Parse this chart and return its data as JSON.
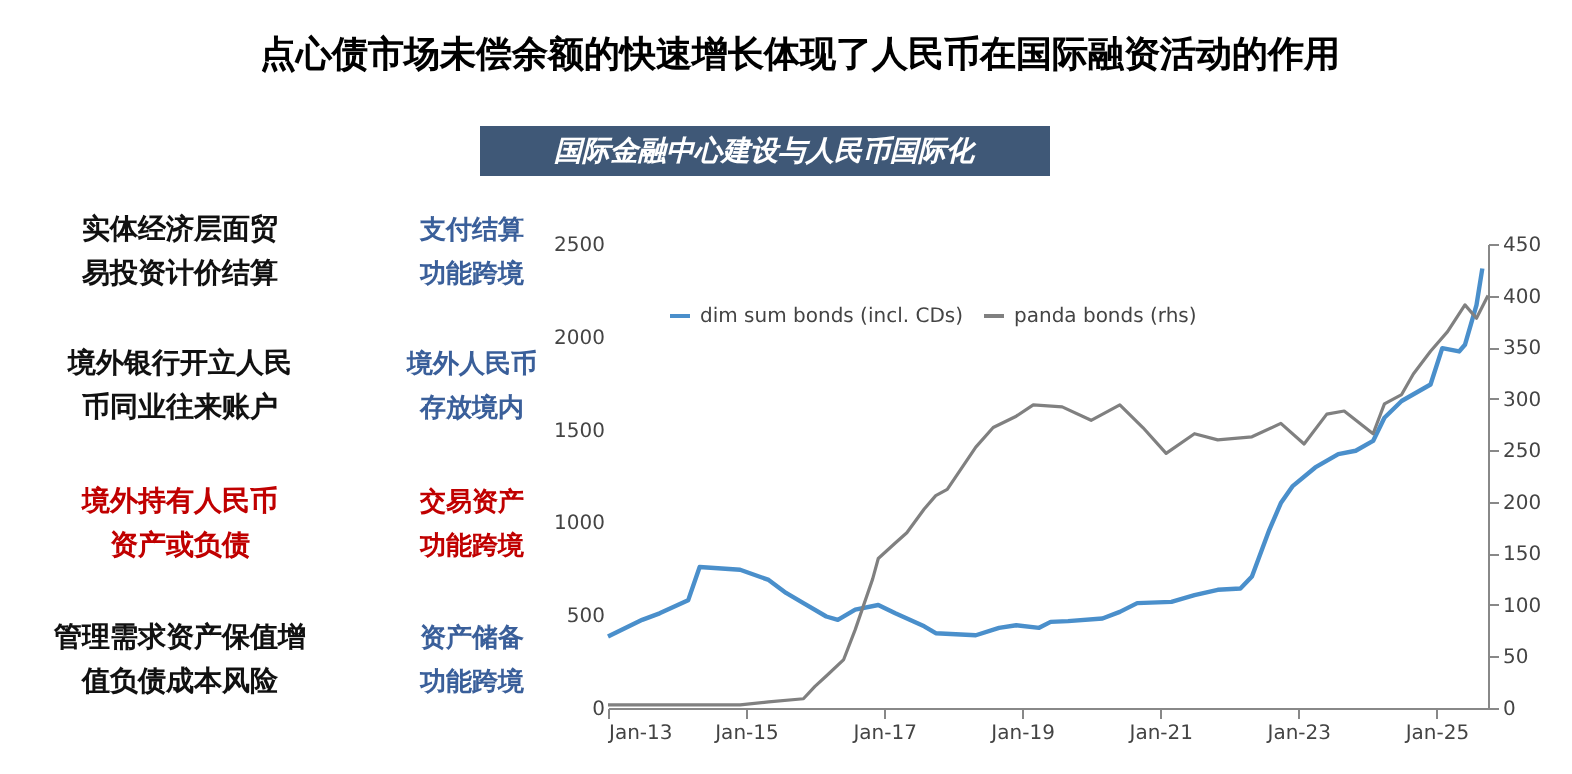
{
  "chart_data": {
    "type": "line",
    "title": "点心债市场未偿余额的快速增长体现了人民币在国际融资活动的作用",
    "subtitle": "国际金融中心建设与人民币国际化",
    "annotations": [
      "实体经济层面贸易投资计价结算",
      "支付结算功能跨境",
      "境外银行开立人民币同业往来账户",
      "境外人民币存放境内",
      "境外持有人民币资产或负债",
      "交易资产功能跨境",
      "管理需求资产保值增值负债成本风险",
      "资产储备功能跨境"
    ],
    "xlim": [
      "2013-01",
      "2025-10"
    ],
    "xticks": [
      {
        "value": "2013-01",
        "label": "Jan-13"
      },
      {
        "value": "2015-01",
        "label": "Jan-15"
      },
      {
        "value": "2017-01",
        "label": "Jan-17"
      },
      {
        "value": "2019-01",
        "label": "Jan-19"
      },
      {
        "value": "2021-01",
        "label": "Jan-21"
      },
      {
        "value": "2023-01",
        "label": "Jan-23"
      },
      {
        "value": "2025-01",
        "label": "Jan-25"
      }
    ],
    "ylim": [
      0,
      2500
    ],
    "yticks": [
      0,
      500,
      1000,
      1500,
      2000,
      2500
    ],
    "y2lim": [
      0,
      450
    ],
    "y2ticks": [
      0,
      50,
      100,
      150,
      200,
      250,
      300,
      350,
      400,
      450
    ],
    "legend": "top left",
    "grid": false,
    "line_style": "solid",
    "marker": "none",
    "series": [
      {
        "name": "dim sum bonds (incl. CDs)",
        "color": "#4a8fcb",
        "x": [
          "2013-01",
          "2013-07",
          "2013-10",
          "2014-03",
          "2014-05",
          "2014-12",
          "2015-05",
          "2015-08",
          "2015-11",
          "2016-03",
          "2016-05",
          "2016-08",
          "2016-12",
          "2017-03",
          "2017-08",
          "2017-10",
          "2018-05",
          "2018-09",
          "2018-12",
          "2019-04",
          "2019-06",
          "2019-09",
          "2020-03",
          "2020-06",
          "2020-09",
          "2021-03",
          "2021-07",
          "2021-11",
          "2022-03",
          "2022-05",
          "2022-08",
          "2022-10",
          "2022-12",
          "2023-04",
          "2023-08",
          "2023-11",
          "2024-02",
          "2024-04",
          "2024-07",
          "2024-12",
          "2025-02",
          "2025-05",
          "2025-06",
          "2025-08",
          "2025-09"
        ],
        "values": [
          385,
          475,
          510,
          580,
          760,
          745,
          690,
          620,
          565,
          493,
          475,
          530,
          555,
          510,
          440,
          403,
          392,
          432,
          446,
          432,
          464,
          468,
          482,
          518,
          565,
          572,
          608,
          637,
          644,
          709,
          960,
          1104,
          1194,
          1296,
          1368,
          1386,
          1439,
          1564,
          1654,
          1743,
          1939,
          1921,
          1957,
          2171,
          2368
        ]
      },
      {
        "name": "panda bonds (rhs)",
        "color": "#808080",
        "axis": "y2",
        "x": [
          "2013-01",
          "2014-12",
          "2015-05",
          "2015-11",
          "2016-01",
          "2016-03",
          "2016-06",
          "2016-08",
          "2016-11",
          "2016-12",
          "2017-03",
          "2017-05",
          "2017-08",
          "2017-10",
          "2017-12",
          "2018-05",
          "2018-08",
          "2018-12",
          "2019-03",
          "2019-08",
          "2020-01",
          "2020-06",
          "2020-10",
          "2021-02",
          "2021-07",
          "2021-11",
          "2022-05",
          "2022-10",
          "2023-02",
          "2023-06",
          "2023-09",
          "2024-02",
          "2024-04",
          "2024-07",
          "2024-09",
          "2024-12",
          "2025-03",
          "2025-06",
          "2025-08",
          "2025-10"
        ],
        "values": [
          3,
          3,
          6,
          9,
          21,
          31,
          47,
          76,
          125,
          145,
          160,
          170,
          193,
          206,
          212,
          253,
          272,
          283,
          294,
          292,
          279,
          294,
          272,
          247,
          266,
          260,
          263,
          276,
          256,
          285,
          288,
          266,
          295,
          304,
          324,
          346,
          365,
          391,
          378,
          400
        ]
      }
    ]
  }
}
